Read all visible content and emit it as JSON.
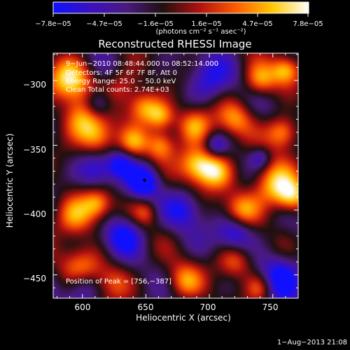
{
  "colorbar": {
    "tick_labels": [
      "−7.8e−05",
      "−4.7e−05",
      "−1.6e−05",
      "1.6e−05",
      "4.7e−05",
      "7.8e−05"
    ],
    "units_text": "(photons cm⁻² s⁻¹ asec⁻²)",
    "colors": [
      "#1010ff",
      "#3a10c0",
      "#4a1a80",
      "#201010",
      "#b01010",
      "#ff5a00",
      "#ffc800",
      "#ffffff"
    ]
  },
  "header": {
    "title": "Reconstructed RHESSI Image",
    "time_range": "9−Jun−2010 08:48:44.000 to 08:52:14.000",
    "detectors": "Detectors: 4F 5F 6F 7F 8F, Att 0",
    "energy_range": "Energy Range: 25.0 − 50.0 keV",
    "clean_counts": "Clean    Total counts: 2.74E+03",
    "peak": "Position of Peak = [756,−387]"
  },
  "footer": {
    "date": "1−Aug−2013 21:08"
  },
  "chart_data": {
    "type": "heatmap",
    "title": "Reconstructed RHESSI Image",
    "xlabel": "Heliocentric X (arcsec)",
    "ylabel": "Heliocentric Y (arcsec)",
    "xlim": [
      577,
      770
    ],
    "ylim": [
      -468,
      -279
    ],
    "x_ticks": [
      600,
      650,
      700,
      750
    ],
    "y_ticks": [
      -300,
      -350,
      -400,
      -450
    ],
    "x_tick_labels": [
      "600",
      "650",
      "700",
      "750"
    ],
    "y_tick_labels": [
      "−300",
      "−350",
      "−400",
      "−450"
    ],
    "value_range": [
      -7.8e-05,
      7.8e-05
    ],
    "marker": {
      "x": 649,
      "y": -377
    },
    "peak_position": [
      756,
      -387
    ],
    "blobs": [
      {
        "x": 590,
        "y": -300,
        "v": 1.0,
        "s": 12
      },
      {
        "x": 600,
        "y": -330,
        "v": 0.9,
        "s": 12
      },
      {
        "x": 612,
        "y": -345,
        "v": 0.85,
        "s": 10
      },
      {
        "x": 595,
        "y": -405,
        "v": 0.9,
        "s": 12
      },
      {
        "x": 600,
        "y": -445,
        "v": 0.75,
        "s": 12
      },
      {
        "x": 625,
        "y": -455,
        "v": 0.6,
        "s": 10
      },
      {
        "x": 632,
        "y": -305,
        "v": 0.55,
        "s": 10
      },
      {
        "x": 648,
        "y": -320,
        "v": 0.9,
        "s": 9
      },
      {
        "x": 662,
        "y": -328,
        "v": 0.85,
        "s": 8
      },
      {
        "x": 662,
        "y": -350,
        "v": 0.75,
        "s": 8
      },
      {
        "x": 640,
        "y": -348,
        "v": 0.6,
        "s": 8
      },
      {
        "x": 688,
        "y": -335,
        "v": 0.9,
        "s": 10
      },
      {
        "x": 690,
        "y": -365,
        "v": 0.95,
        "s": 10
      },
      {
        "x": 705,
        "y": -370,
        "v": 0.9,
        "s": 10
      },
      {
        "x": 720,
        "y": -330,
        "v": 0.7,
        "s": 10
      },
      {
        "x": 740,
        "y": -300,
        "v": 0.85,
        "s": 9
      },
      {
        "x": 760,
        "y": -292,
        "v": 0.9,
        "s": 8
      },
      {
        "x": 758,
        "y": -340,
        "v": 0.95,
        "s": 9
      },
      {
        "x": 750,
        "y": -380,
        "v": 1.0,
        "s": 12
      },
      {
        "x": 765,
        "y": -390,
        "v": 0.95,
        "s": 9
      },
      {
        "x": 725,
        "y": -400,
        "v": 0.8,
        "s": 10
      },
      {
        "x": 720,
        "y": -440,
        "v": 0.75,
        "s": 10
      },
      {
        "x": 680,
        "y": -455,
        "v": 0.7,
        "s": 10
      },
      {
        "x": 740,
        "y": -460,
        "v": 0.7,
        "s": 8
      },
      {
        "x": 612,
        "y": -395,
        "v": 0.7,
        "s": 8
      },
      {
        "x": 650,
        "y": -402,
        "v": 0.5,
        "s": 7
      },
      {
        "x": 648,
        "y": -378,
        "v": -1.0,
        "s": 8
      },
      {
        "x": 632,
        "y": -420,
        "v": -0.9,
        "s": 10
      },
      {
        "x": 610,
        "y": -370,
        "v": -0.7,
        "s": 10
      },
      {
        "x": 720,
        "y": -418,
        "v": -0.8,
        "s": 10
      },
      {
        "x": 756,
        "y": -452,
        "v": -0.85,
        "s": 12
      },
      {
        "x": 600,
        "y": -458,
        "v": -0.7,
        "s": 10
      },
      {
        "x": 700,
        "y": -300,
        "v": -0.6,
        "s": 12
      },
      {
        "x": 612,
        "y": -318,
        "v": -0.8,
        "s": 8
      },
      {
        "x": 680,
        "y": -400,
        "v": -0.6,
        "s": 10
      },
      {
        "x": 630,
        "y": -365,
        "v": -0.7,
        "s": 7
      },
      {
        "x": 705,
        "y": -350,
        "v": -0.5,
        "s": 6
      },
      {
        "x": 740,
        "y": -360,
        "v": -0.55,
        "s": 6
      }
    ]
  }
}
